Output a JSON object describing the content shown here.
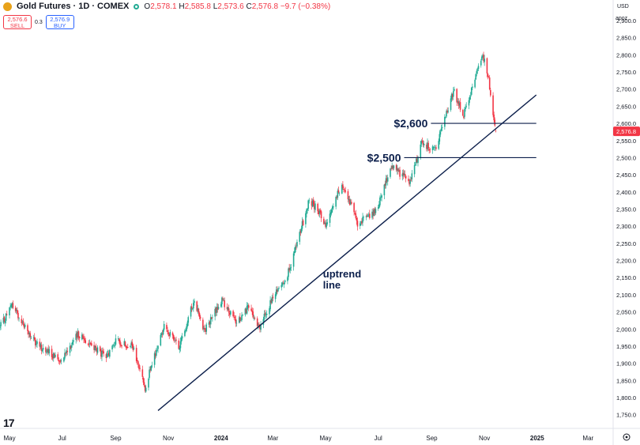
{
  "header": {
    "title": "Gold Futures · 1D · COMEX",
    "open_label": "O",
    "open": "2,578.1",
    "high_label": "H",
    "high": "2,585.8",
    "low_label": "L",
    "low": "2,573.6",
    "close_label": "C",
    "close": "2,576.8",
    "change": "−9.7 (−0.38%)"
  },
  "trade": {
    "sell_price": "2,576.6",
    "sell_label": "SELL",
    "spread": "0.3",
    "buy_price": "2,576.9",
    "buy_label": "BUY"
  },
  "corner": {
    "currency": "USD",
    "scale": "apoz"
  },
  "logo_text": "17",
  "colors": {
    "up": "#22ab94",
    "down": "#f23645",
    "annotation": "#0c1f4b",
    "axis_text": "#131722"
  },
  "chart_data": {
    "type": "candlestick",
    "title": "Gold Futures · 1D · COMEX",
    "ylim": [
      1710,
      2960
    ],
    "y_ticks": [
      1750,
      1800,
      1850,
      1900,
      1950,
      2000,
      2050,
      2100,
      2150,
      2200,
      2250,
      2300,
      2350,
      2400,
      2450,
      2500,
      2550,
      2600,
      2650,
      2700,
      2750,
      2800,
      2850,
      2900
    ],
    "y_tick_labels": [
      "1,750.0",
      "1,800.0",
      "1,850.0",
      "1,900.0",
      "1,950.0",
      "2,000.0",
      "2,050.0",
      "2,100.0",
      "2,150.0",
      "2,200.0",
      "2,250.0",
      "2,300.0",
      "2,350.0",
      "2,400.0",
      "2,450.0",
      "2,500.0",
      "2,550.0",
      "2,600.0",
      "2,650.0",
      "2,700.0",
      "2,750.0",
      "2,800.0",
      "2,850.0",
      "2,900.0"
    ],
    "x_time_range": [
      "2023-04-20",
      "2025-03-30"
    ],
    "x_ticks": [
      {
        "date": "2023-05-01",
        "label": "May",
        "bold": false
      },
      {
        "date": "2023-07-01",
        "label": "Jul",
        "bold": false
      },
      {
        "date": "2023-09-01",
        "label": "Sep",
        "bold": false
      },
      {
        "date": "2023-11-01",
        "label": "Nov",
        "bold": false
      },
      {
        "date": "2024-01-01",
        "label": "2024",
        "bold": true
      },
      {
        "date": "2024-03-01",
        "label": "Mar",
        "bold": false
      },
      {
        "date": "2024-05-01",
        "label": "May",
        "bold": false
      },
      {
        "date": "2024-07-01",
        "label": "Jul",
        "bold": false
      },
      {
        "date": "2024-09-01",
        "label": "Sep",
        "bold": false
      },
      {
        "date": "2024-11-01",
        "label": "Nov",
        "bold": false
      },
      {
        "date": "2025-01-01",
        "label": "2025",
        "bold": true
      },
      {
        "date": "2025-03-01",
        "label": "Mar",
        "bold": false
      }
    ],
    "price_path": [
      [
        "2023-04-20",
        2005
      ],
      [
        "2023-05-04",
        2070
      ],
      [
        "2023-05-30",
        1960
      ],
      [
        "2023-06-28",
        1910
      ],
      [
        "2023-07-20",
        1985
      ],
      [
        "2023-08-21",
        1915
      ],
      [
        "2023-09-01",
        1965
      ],
      [
        "2023-09-20",
        1950
      ],
      [
        "2023-10-05",
        1830
      ],
      [
        "2023-10-27",
        2010
      ],
      [
        "2023-11-13",
        1945
      ],
      [
        "2023-12-01",
        2085
      ],
      [
        "2023-12-13",
        1995
      ],
      [
        "2024-01-02",
        2085
      ],
      [
        "2024-01-19",
        2015
      ],
      [
        "2024-02-01",
        2065
      ],
      [
        "2024-02-14",
        2000
      ],
      [
        "2024-03-01",
        2090
      ],
      [
        "2024-03-20",
        2170
      ],
      [
        "2024-04-12",
        2375
      ],
      [
        "2024-04-22",
        2350
      ],
      [
        "2024-05-01",
        2305
      ],
      [
        "2024-05-20",
        2425
      ],
      [
        "2024-06-07",
        2310
      ],
      [
        "2024-06-28",
        2340
      ],
      [
        "2024-07-16",
        2475
      ],
      [
        "2024-08-07",
        2430
      ],
      [
        "2024-08-20",
        2540
      ],
      [
        "2024-09-06",
        2525
      ],
      [
        "2024-09-26",
        2695
      ],
      [
        "2024-10-08",
        2625
      ],
      [
        "2024-10-30",
        2800
      ],
      [
        "2024-11-05",
        2745
      ],
      [
        "2024-11-14",
        2576.8
      ]
    ],
    "last_candle": {
      "date": "2024-11-14",
      "open": 2578.1,
      "high": 2585.8,
      "low": 2573.6,
      "close": 2576.8
    },
    "annotations": [
      {
        "type": "hline",
        "label": "$2,600",
        "price": 2600,
        "from": "2024-08-31",
        "to": "2024-12-31"
      },
      {
        "type": "hline",
        "label": "$2,500",
        "price": 2500,
        "from": "2024-07-31",
        "to": "2024-12-31"
      },
      {
        "type": "trendline",
        "label": "uptrend line",
        "label_lines": [
          "uptrend",
          "line"
        ],
        "points": [
          [
            "2023-10-20",
            1762
          ],
          [
            "2024-12-31",
            2683
          ]
        ]
      }
    ]
  }
}
